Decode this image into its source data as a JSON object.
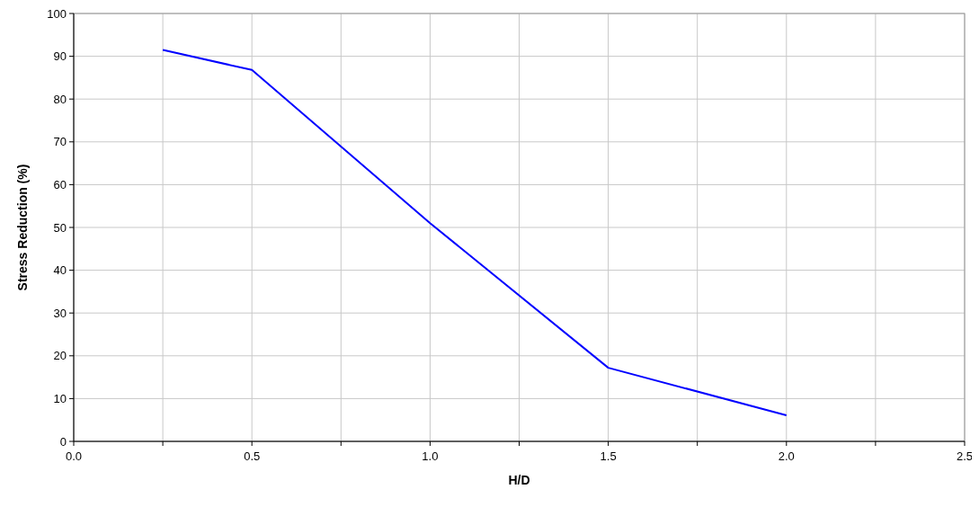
{
  "chart_data": {
    "type": "line",
    "xlabel": "H/D",
    "ylabel": "Stress Reduction (%)",
    "x": [
      0.25,
      0.5,
      1.0,
      1.5,
      2.0
    ],
    "series": [
      {
        "color": "#0000ff",
        "values": [
          91.5,
          86.8,
          51,
          17.2,
          6.1
        ]
      }
    ],
    "xlim": [
      0,
      2.5
    ],
    "ylim": [
      0,
      100
    ],
    "xticks": [
      {
        "value": 0,
        "label": "0.0"
      },
      {
        "value": 0.25,
        "label": null
      },
      {
        "value": 0.5,
        "label": "0.5"
      },
      {
        "value": 0.75,
        "label": null
      },
      {
        "value": 1,
        "label": "1.0"
      },
      {
        "value": 1.25,
        "label": null
      },
      {
        "value": 1.5,
        "label": "1.5"
      },
      {
        "value": 1.75,
        "label": null
      },
      {
        "value": 2,
        "label": "2.0"
      },
      {
        "value": 2.25,
        "label": null
      },
      {
        "value": 2.5,
        "label": "2.5"
      }
    ],
    "yticks": [
      0,
      10,
      20,
      30,
      40,
      50,
      60,
      70,
      80,
      90,
      100
    ],
    "grid": true,
    "marker": "none",
    "line_style": "solid"
  }
}
